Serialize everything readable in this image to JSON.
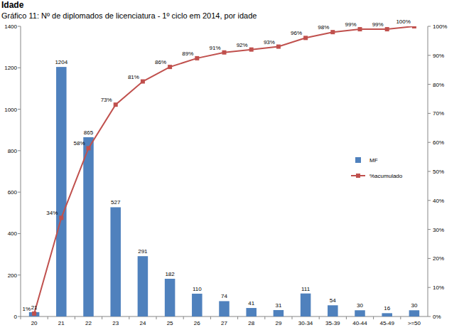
{
  "chart_data": {
    "type": "bar",
    "heading": "Idade",
    "title": "Gráfico 11: Nº de diplomados de licenciatura - 1º ciclo em 2014, por idade",
    "categories": [
      "20",
      "21",
      "22",
      "23",
      "24",
      "25",
      "26",
      "27",
      "28",
      "29",
      "30-34",
      "35-39",
      "40-44",
      "45-49",
      ">=50"
    ],
    "series": [
      {
        "name": "MF",
        "type": "bar",
        "color": "#4f81bd",
        "values": [
          21,
          1204,
          865,
          527,
          291,
          182,
          110,
          74,
          41,
          31,
          111,
          54,
          30,
          16,
          30
        ]
      },
      {
        "name": "%acumulado",
        "type": "line",
        "axis": "y2",
        "color": "#c0504d",
        "marker": "square",
        "values": [
          1,
          34,
          58,
          73,
          81,
          86,
          89,
          91,
          92,
          93,
          96,
          98,
          99,
          99,
          100
        ],
        "value_labels": [
          "1%",
          "34%",
          "58%",
          "73%",
          "81%",
          "86%",
          "89%",
          "91%",
          "92%",
          "93%",
          "96%",
          "98%",
          "99%",
          "99%",
          "100%"
        ]
      }
    ],
    "ylim": [
      0,
      1400
    ],
    "yticks": [
      0,
      200,
      400,
      600,
      800,
      1000,
      1200,
      1400
    ],
    "y2lim": [
      0,
      100
    ],
    "y2ticks": [
      {
        "value": 0,
        "label": "0%"
      },
      {
        "value": 10,
        "label": "10%"
      },
      {
        "value": 20,
        "label": "20%"
      },
      {
        "value": 30,
        "label": "30%"
      },
      {
        "value": 40,
        "label": "40%"
      },
      {
        "value": 50,
        "label": "50%"
      },
      {
        "value": 60,
        "label": "60%"
      },
      {
        "value": 70,
        "label": "70%"
      },
      {
        "value": 80,
        "label": "80%"
      },
      {
        "value": 90,
        "label": "90%"
      },
      {
        "value": 100,
        "label": "100%"
      }
    ],
    "data_labels": true,
    "grid": false,
    "legend": "right"
  }
}
